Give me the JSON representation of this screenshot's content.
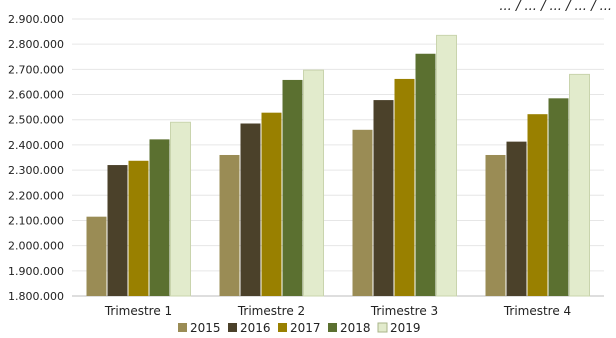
{
  "chart_data": {
    "type": "bar",
    "title_partial": "... / ... / ... / ... / ...",
    "categories": [
      "Trimestre 1",
      "Trimestre 2",
      "Trimestre 3",
      "Trimestre 4"
    ],
    "y_tick_labels": [
      "1.800.000",
      "1.900.000",
      "2.000.000",
      "2.100.000",
      "2.200.000",
      "2.300.000",
      "2.400.000",
      "2.500.000",
      "2.600.000",
      "2.700.000",
      "2.800.000",
      "2.900.000"
    ],
    "ylim": [
      1800000,
      2900000
    ],
    "grid": true,
    "legend_position": "bottom",
    "series": [
      {
        "name": "2015",
        "color": "#9a8c55",
        "values": [
          2115000,
          2360000,
          2460000,
          2360000
        ]
      },
      {
        "name": "2016",
        "color": "#4b412a",
        "values": [
          2320000,
          2485000,
          2578000,
          2413000
        ]
      },
      {
        "name": "2017",
        "color": "#998000",
        "values": [
          2337000,
          2528000,
          2662000,
          2522000
        ]
      },
      {
        "name": "2018",
        "color": "#5b7030",
        "values": [
          2422000,
          2658000,
          2762000,
          2585000
        ]
      },
      {
        "name": "2019",
        "color": "#e2ebcc",
        "values": [
          2490000,
          2697000,
          2835000,
          2680000
        ]
      }
    ]
  }
}
